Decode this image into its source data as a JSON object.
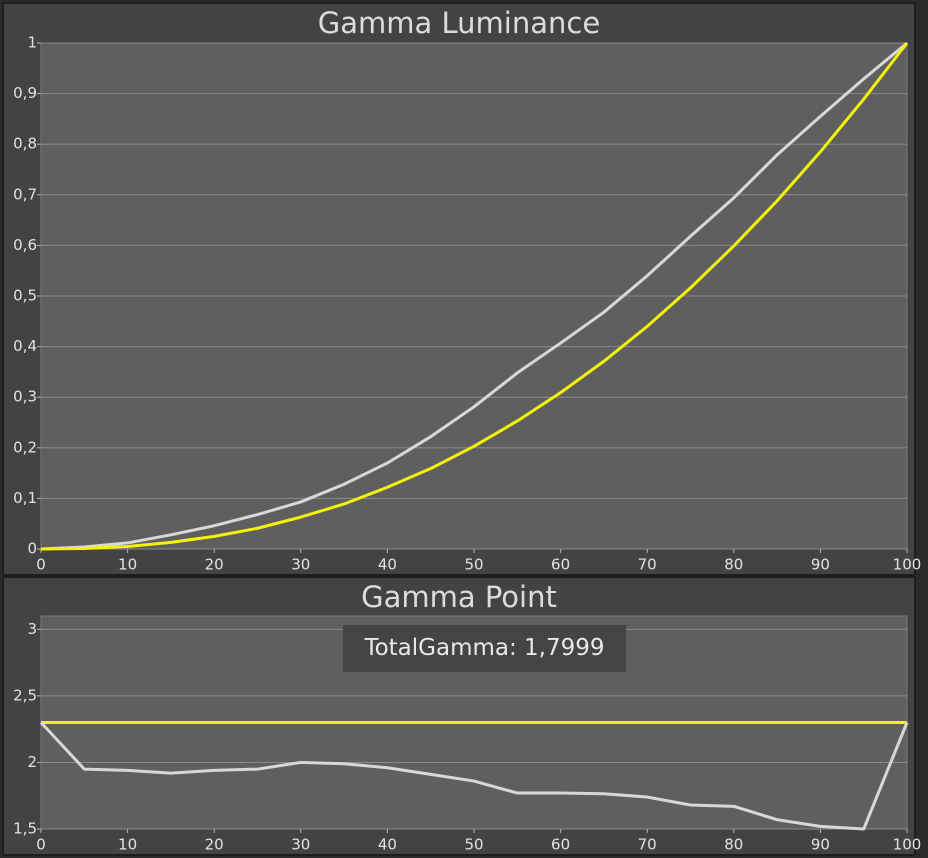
{
  "chart_data": [
    {
      "type": "line",
      "title": "Gamma Luminance",
      "x": [
        0,
        5,
        10,
        15,
        20,
        25,
        30,
        35,
        40,
        45,
        50,
        55,
        60,
        65,
        70,
        75,
        80,
        85,
        90,
        95,
        100
      ],
      "series": [
        {
          "color": "#d8d8d8",
          "values": [
            0,
            0.004,
            0.012,
            0.028,
            0.046,
            0.068,
            0.093,
            0.128,
            0.17,
            0.222,
            0.281,
            0.348,
            0.407,
            0.468,
            0.54,
            0.618,
            0.694,
            0.779,
            0.855,
            0.929,
            1
          ]
        },
        {
          "color": "#f2f20a",
          "values": [
            0,
            0.001,
            0.005,
            0.013,
            0.025,
            0.041,
            0.063,
            0.089,
            0.122,
            0.159,
            0.203,
            0.253,
            0.309,
            0.371,
            0.44,
            0.516,
            0.599,
            0.688,
            0.785,
            0.889,
            1
          ]
        }
      ],
      "xlim": [
        0,
        100
      ],
      "ylim": [
        0,
        1
      ],
      "xticks": [
        0,
        10,
        20,
        30,
        40,
        50,
        60,
        70,
        80,
        90,
        100
      ],
      "yticks": [
        0,
        {
          "value": 0.1,
          "label": "0,1"
        },
        {
          "value": 0.2,
          "label": "0,2"
        },
        {
          "value": 0.3,
          "label": "0,3"
        },
        {
          "value": 0.4,
          "label": "0,4"
        },
        {
          "value": 0.5,
          "label": "0,5"
        },
        {
          "value": 0.6,
          "label": "0,6"
        },
        {
          "value": 0.7,
          "label": "0,7"
        },
        {
          "value": 0.8,
          "label": "0,8"
        },
        {
          "value": 0.9,
          "label": "0,9"
        },
        1
      ],
      "grid": true
    },
    {
      "type": "line",
      "title": "Gamma Point",
      "annotation": "TotalGamma: 1,7999",
      "x": [
        0,
        5,
        10,
        15,
        20,
        25,
        30,
        35,
        40,
        45,
        50,
        55,
        60,
        65,
        70,
        75,
        80,
        85,
        90,
        95,
        100
      ],
      "series": [
        {
          "color": "#f2f20a",
          "values": [
            2.3,
            2.3,
            2.3,
            2.3,
            2.3,
            2.3,
            2.3,
            2.3,
            2.3,
            2.3,
            2.3,
            2.3,
            2.3,
            2.3,
            2.3,
            2.3,
            2.3,
            2.3,
            2.3,
            2.3,
            2.3
          ]
        },
        {
          "color": "#d8d8d8",
          "values": [
            2.3,
            1.95,
            1.94,
            1.92,
            1.94,
            1.95,
            2.0,
            1.99,
            1.96,
            1.91,
            1.86,
            1.77,
            1.77,
            1.765,
            1.74,
            1.68,
            1.67,
            1.57,
            1.52,
            1.5,
            2.3
          ]
        }
      ],
      "xlim": [
        0,
        100
      ],
      "ylim": [
        1.5,
        3.1
      ],
      "xticks": [
        0,
        10,
        20,
        30,
        40,
        50,
        60,
        70,
        80,
        90,
        100
      ],
      "yticks": [
        {
          "value": 1.5,
          "label": "1,5"
        },
        2,
        {
          "value": 2.5,
          "label": "2,5"
        },
        3
      ],
      "grid": true
    }
  ]
}
